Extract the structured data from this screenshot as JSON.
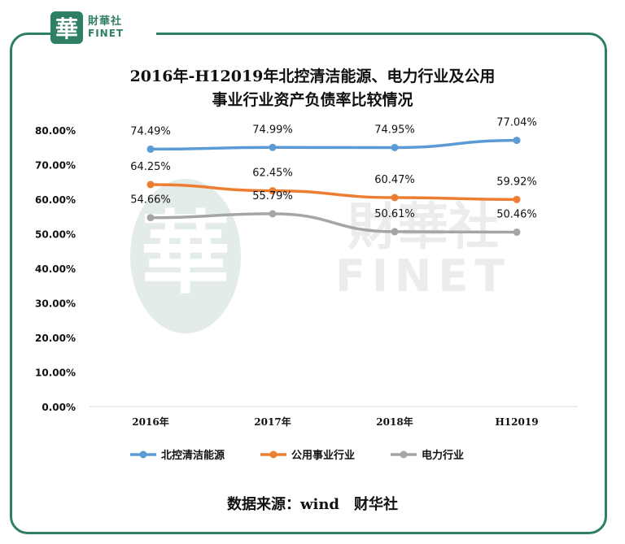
{
  "brand": {
    "logo_char": "華",
    "name_cn": "財華社",
    "name_en": "FINET",
    "watermark_cn": "財華社",
    "watermark_en": "FINET"
  },
  "chart_data": {
    "type": "line",
    "title_line1": "2016年-H12019年北控清洁能源、电力行业及公用",
    "title_line2": "事业行业资产负债率比较情况",
    "categories": [
      "2016年",
      "2017年",
      "2018年",
      "H12019"
    ],
    "y_ticks": [
      "0.00%",
      "10.00%",
      "20.00%",
      "30.00%",
      "40.00%",
      "50.00%",
      "60.00%",
      "70.00%",
      "80.00%"
    ],
    "ylim": [
      0,
      80
    ],
    "grid": false,
    "legend_position": "bottom",
    "series": [
      {
        "name": "北控清洁能源",
        "color": "#5b9bd5",
        "values": [
          74.49,
          74.99,
          74.95,
          77.04
        ],
        "labels": [
          "74.49%",
          "74.99%",
          "74.95%",
          "77.04%"
        ]
      },
      {
        "name": "公用事业行业",
        "color": "#ed7d31",
        "values": [
          64.25,
          62.45,
          60.47,
          59.92
        ],
        "labels": [
          "64.25%",
          "62.45%",
          "60.47%",
          "59.92%"
        ]
      },
      {
        "name": "电力行业",
        "color": "#a5a5a5",
        "values": [
          54.66,
          55.79,
          50.61,
          50.46
        ],
        "labels": [
          "54.66%",
          "55.79%",
          "50.61%",
          "50.46%"
        ]
      }
    ]
  },
  "source_text": "数据来源：wind　财华社"
}
